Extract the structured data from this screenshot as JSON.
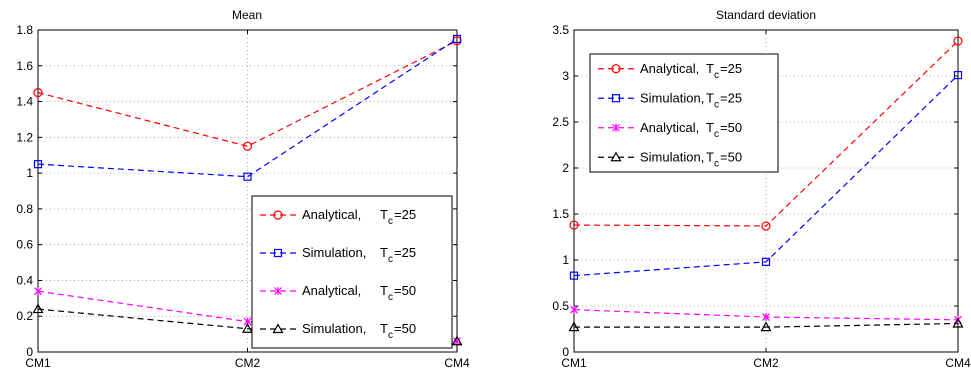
{
  "chart_data": [
    {
      "type": "line",
      "title": "Mean",
      "categories": [
        "CM1",
        "CM2",
        "CM4"
      ],
      "ylim": [
        0,
        1.8
      ],
      "yticks": [
        "0",
        "0.2",
        "0.4",
        "0.6",
        "0.8",
        "1",
        "1.2",
        "1.4",
        "1.6",
        "1.8"
      ],
      "grid": true,
      "legend_position": "right",
      "series": [
        {
          "name": "Analytical,",
          "tc": "T",
          "tc_sub": "c",
          "tc_val": "=25",
          "values": [
            1.45,
            1.15,
            1.74
          ],
          "color": "#ff0000",
          "marker": "circle"
        },
        {
          "name": "Simulation,",
          "tc": "T",
          "tc_sub": "c",
          "tc_val": "=25",
          "values": [
            1.05,
            0.98,
            1.75
          ],
          "color": "#0000ff",
          "marker": "square"
        },
        {
          "name": "Analytical,",
          "tc": "T",
          "tc_sub": "c",
          "tc_val": "=50",
          "values": [
            0.34,
            0.17,
            0.06
          ],
          "color": "#ff00ff",
          "marker": "x"
        },
        {
          "name": "Simulation,",
          "tc": "T",
          "tc_sub": "c",
          "tc_val": "=50",
          "values": [
            0.24,
            0.13,
            0.06
          ],
          "color": "#000000",
          "marker": "triangle"
        }
      ]
    },
    {
      "type": "line",
      "title": "Standard deviation",
      "categories": [
        "CM1",
        "CM2",
        "CM4"
      ],
      "ylim": [
        0,
        3.5
      ],
      "yticks": [
        "0",
        "0.5",
        "1",
        "1.5",
        "2",
        "2.5",
        "3",
        "3.5"
      ],
      "grid": true,
      "legend_position": "top-left",
      "series": [
        {
          "name": "Analytical,",
          "tc": "T",
          "tc_sub": "c",
          "tc_val": "=25",
          "values": [
            1.38,
            1.37,
            3.38
          ],
          "color": "#ff0000",
          "marker": "circle"
        },
        {
          "name": "Simulation,",
          "tc": "T",
          "tc_sub": "c",
          "tc_val": "=25",
          "values": [
            0.83,
            0.98,
            3.01
          ],
          "color": "#0000ff",
          "marker": "square"
        },
        {
          "name": "Analytical,",
          "tc": "T",
          "tc_sub": "c",
          "tc_val": "=50",
          "values": [
            0.46,
            0.38,
            0.35
          ],
          "color": "#ff00ff",
          "marker": "x"
        },
        {
          "name": "Simulation,",
          "tc": "T",
          "tc_sub": "c",
          "tc_val": "=50",
          "values": [
            0.27,
            0.27,
            0.31
          ],
          "color": "#000000",
          "marker": "triangle"
        }
      ]
    }
  ]
}
